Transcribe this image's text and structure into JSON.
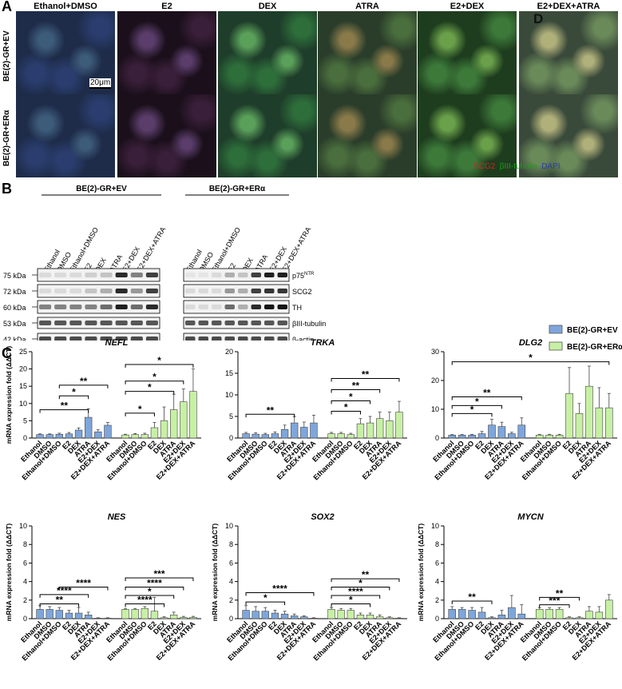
{
  "panels": {
    "a": "A",
    "b": "B",
    "c": "C"
  },
  "micro": {
    "columns": [
      "Ethanol+DMSO",
      "E2",
      "DEX",
      "ATRA",
      "E2+DEX",
      "E2+DEX+ATRA"
    ],
    "rows": [
      "BE(2)-GR+EV",
      "BE(2)-GR+ERα"
    ],
    "scale_bar": "20μm",
    "corner_label": "D",
    "stain_legend": [
      {
        "text": "SCG2",
        "color": "#d62020"
      },
      {
        "text": "βIII-tubulin",
        "color": "#1a9e1a"
      },
      {
        "text": "DAPI",
        "color": "#2b3ea8"
      }
    ]
  },
  "western": {
    "groups": [
      "BE(2)-GR+EV",
      "BE(2)-GR+ERα"
    ],
    "lanes": [
      "Ethanol",
      "DMSO",
      "Ethanol+DMSO",
      "E2",
      "DEX",
      "ATRA",
      "E2+DEX",
      "E2+DEX+ATRA"
    ],
    "kda": [
      "75 kDa",
      "72 kDa",
      "60 kDa",
      "53 kDa",
      "42 kDa"
    ],
    "proteins": [
      "p75",
      "SCG2",
      "TH",
      "βIII-tubulin",
      "β-actin"
    ],
    "p75_sup": "NTR"
  },
  "legend": {
    "ev": "BE(2)-GR+EV",
    "era": "BE(2)-GR+ERα",
    "ev_color": "#7ea6dc",
    "era_color": "#c7f0a4"
  },
  "chart_data": [
    {
      "type": "bar",
      "title": "NEFL",
      "ylabel": "mRNA expression fold (ΔΔCT)",
      "ylim": [
        0,
        25
      ],
      "yticks": [
        0,
        5,
        10,
        15,
        20,
        25
      ],
      "categories": [
        "Ethanol",
        "DMSO",
        "Ethanol+DMSO",
        "E2",
        "DEX",
        "ATRA",
        "E2+DEX",
        "E2+DEX+ATRA"
      ],
      "series": [
        {
          "name": "BE(2)-GR+EV",
          "values": [
            1,
            1,
            1.1,
            1.2,
            2.3,
            6,
            1.8,
            3.7
          ],
          "err": [
            0.2,
            0.2,
            0.3,
            0.4,
            0.6,
            2.5,
            0.6,
            0.8
          ]
        },
        {
          "name": "BE(2)-GR+ERα",
          "values": [
            0.9,
            1,
            1,
            3,
            5,
            8.2,
            10.5,
            13.5
          ],
          "err": [
            0.2,
            0.3,
            0.4,
            1.5,
            4,
            4.5,
            3.7,
            6.5
          ]
        }
      ],
      "sig": [
        {
          "label": "**",
          "s": 0,
          "from": 0,
          "to": 5,
          "y": 8.2
        },
        {
          "label": "*",
          "s": 0,
          "from": 2,
          "to": 5,
          "y": 12.2
        },
        {
          "label": "**",
          "s": 0,
          "from": 2,
          "to": 7,
          "y": 15.3
        },
        {
          "label": "*",
          "s": 1,
          "from": 0,
          "to": 3,
          "y": 7.2
        },
        {
          "label": "*",
          "s": 1,
          "from": 0,
          "to": 5,
          "y": 13.5
        },
        {
          "label": "*",
          "s": 1,
          "from": 0,
          "to": 6,
          "y": 16.5
        },
        {
          "label": "*",
          "s": 1,
          "from": 0,
          "to": 7,
          "y": 21.3
        }
      ]
    },
    {
      "type": "bar",
      "title": "TRKA",
      "ylabel": "",
      "ylim": [
        0,
        20
      ],
      "yticks": [
        0,
        5,
        10,
        15,
        20
      ],
      "categories": [
        "Ethanol",
        "DMSO",
        "Ethanol+DMSO",
        "E2",
        "DEX",
        "ATRA",
        "E2+DEX",
        "E2+DEX+ATRA"
      ],
      "series": [
        {
          "name": "BE(2)-GR+EV",
          "values": [
            1,
            0.9,
            0.8,
            1,
            2,
            3.5,
            2.5,
            3.5
          ],
          "err": [
            0.3,
            0.3,
            0.3,
            0.4,
            1,
            1.5,
            1.2,
            1.8
          ]
        },
        {
          "name": "BE(2)-GR+ERα",
          "values": [
            1,
            1,
            0.8,
            3.3,
            3.5,
            4.5,
            4,
            6
          ],
          "err": [
            0.3,
            0.3,
            0.3,
            1.2,
            1.5,
            1.5,
            2,
            2.5
          ]
        }
      ],
      "sig": [
        {
          "label": "**",
          "s": 0,
          "from": 0,
          "to": 5,
          "y": 5.5
        },
        {
          "label": "*",
          "s": 1,
          "from": 0,
          "to": 3,
          "y": 6.2
        },
        {
          "label": "*",
          "s": 1,
          "from": 0,
          "to": 4,
          "y": 8.6
        },
        {
          "label": "**",
          "s": 1,
          "from": 0,
          "to": 5,
          "y": 11.2
        },
        {
          "label": "**",
          "s": 1,
          "from": 0,
          "to": 7,
          "y": 13.8
        }
      ]
    },
    {
      "type": "bar",
      "title": "DLG2",
      "ylabel": "",
      "ylim": [
        0,
        30
      ],
      "yticks": [
        0,
        10,
        20,
        30
      ],
      "categories": [
        "Ethanol",
        "DMSO",
        "Ethanol+DMSO",
        "E2",
        "DEX",
        "ATRA",
        "E2+DEX",
        "E2+DEX+ATRA"
      ],
      "series": [
        {
          "name": "BE(2)-GR+EV",
          "values": [
            1,
            1,
            1,
            1.5,
            4.5,
            4,
            1.5,
            4.5
          ],
          "err": [
            0.2,
            0.2,
            0.3,
            0.8,
            2,
            1.5,
            0.5,
            2.5
          ]
        },
        {
          "name": "BE(2)-GR+ERα",
          "values": [
            1,
            1,
            1,
            15.5,
            8.5,
            18,
            10.5,
            10.5
          ],
          "err": [
            0.3,
            0.3,
            0.3,
            9,
            3.5,
            7,
            7,
            5
          ]
        }
      ],
      "sig": [
        {
          "label": "*",
          "s": 0,
          "from": 0,
          "to": 4,
          "y": 8.5
        },
        {
          "label": "*",
          "s": 0,
          "from": 0,
          "to": 5,
          "y": 11.3
        },
        {
          "label": "**",
          "s": 0,
          "from": 0,
          "to": 7,
          "y": 14.3
        },
        {
          "label": "*",
          "s": 2,
          "from": 0,
          "to": 7,
          "y": 26.5
        }
      ]
    },
    {
      "type": "bar",
      "title": "NES",
      "ylabel": "mRNA expression fold (ΔΔCT)",
      "ylim": [
        0,
        10
      ],
      "yticks": [
        0,
        2,
        4,
        6,
        8,
        10
      ],
      "categories": [
        "Ethanol",
        "DMSO",
        "Ethanol+DMSO",
        "E2",
        "DEX",
        "ATRA",
        "E2+DEX",
        "E2+DEX+ATRA"
      ],
      "series": [
        {
          "name": "BE(2)-GR+EV",
          "values": [
            1,
            1,
            0.9,
            0.6,
            0.6,
            0.4,
            0.05,
            0.05
          ],
          "err": [
            0.4,
            0.3,
            0.3,
            0.3,
            0.6,
            0.3,
            0.05,
            0.05
          ]
        },
        {
          "name": "BE(2)-GR+ERα",
          "values": [
            1,
            1,
            1.1,
            0.8,
            0.1,
            0.4,
            0.15,
            0.15
          ],
          "err": [
            0.1,
            0.1,
            0.2,
            1.5,
            0.1,
            0.3,
            0.1,
            0.1
          ]
        }
      ],
      "sig": [
        {
          "label": "**",
          "s": 0,
          "from": 0,
          "to": 4,
          "y": 1.6
        },
        {
          "label": "****",
          "s": 0,
          "from": 0,
          "to": 5,
          "y": 2.6
        },
        {
          "label": "****",
          "s": 0,
          "from": 2,
          "to": 7,
          "y": 3.4
        },
        {
          "label": "****",
          "s": 1,
          "from": 0,
          "to": 4,
          "y": 1.6
        },
        {
          "label": "*",
          "s": 1,
          "from": 0,
          "to": 5,
          "y": 2.5
        },
        {
          "label": "****",
          "s": 1,
          "from": 0,
          "to": 6,
          "y": 3.4
        },
        {
          "label": "***",
          "s": 1,
          "from": 0,
          "to": 7,
          "y": 4.4
        }
      ]
    },
    {
      "type": "bar",
      "title": "SOX2",
      "ylabel": "mRNA expression fold (ΔΔCT)",
      "ylim": [
        0,
        10
      ],
      "yticks": [
        0,
        2,
        4,
        6,
        8,
        10
      ],
      "categories": [
        "Ethanol",
        "DMSO",
        "Ethanol+DMSO",
        "E2",
        "DEX",
        "ATRA",
        "E2+DEX",
        "E2+DEX+ATRA"
      ],
      "series": [
        {
          "name": "BE(2)-GR+EV",
          "values": [
            0.9,
            0.8,
            0.8,
            0.6,
            0.5,
            0.3,
            0.2,
            0.05
          ],
          "err": [
            0.5,
            0.5,
            0.4,
            0.3,
            0.3,
            0.2,
            0.1,
            0.05
          ]
        },
        {
          "name": "BE(2)-GR+ERα",
          "values": [
            1,
            0.9,
            0.9,
            0.4,
            0.4,
            0.2,
            0.1,
            0.05
          ],
          "err": [
            0.2,
            0.2,
            0.2,
            0.2,
            0.2,
            0.2,
            0.1,
            0.05
          ]
        }
      ],
      "sig": [
        {
          "label": "*",
          "s": 0,
          "from": 0,
          "to": 4,
          "y": 1.8
        },
        {
          "label": "****",
          "s": 0,
          "from": 0,
          "to": 7,
          "y": 2.8
        },
        {
          "label": "*",
          "s": 1,
          "from": 0,
          "to": 4,
          "y": 1.6
        },
        {
          "label": "****",
          "s": 1,
          "from": 0,
          "to": 5,
          "y": 2.5
        },
        {
          "label": "*",
          "s": 1,
          "from": 0,
          "to": 6,
          "y": 3.4
        },
        {
          "label": "**",
          "s": 1,
          "from": 0,
          "to": 7,
          "y": 4.3
        }
      ]
    },
    {
      "type": "bar",
      "title": "MYCN",
      "ylabel": "mRNA expression fold (ΔΔCT)",
      "ylim": [
        0,
        10
      ],
      "yticks": [
        0,
        2,
        4,
        6,
        8,
        10
      ],
      "categories": [
        "Ethanol",
        "DMSO",
        "Ethanol+DMSO",
        "E2",
        "DEX",
        "ATRA",
        "E2+DEX",
        "E2+DEX+ATRA"
      ],
      "series": [
        {
          "name": "BE(2)-GR+EV",
          "values": [
            1,
            1,
            0.9,
            0.7,
            0.1,
            0.4,
            1.2,
            0.5
          ],
          "err": [
            0.3,
            0.2,
            0.3,
            0.5,
            0.1,
            0.5,
            1.3,
            1
          ]
        },
        {
          "name": "BE(2)-GR+ERα",
          "values": [
            1,
            1,
            1,
            0.1,
            0.1,
            0.8,
            0.7,
            2
          ],
          "err": [
            0.2,
            0.2,
            0.2,
            0.1,
            0.1,
            0.5,
            0.6,
            0.6
          ]
        }
      ],
      "sig": [
        {
          "label": "**",
          "s": 0,
          "from": 0,
          "to": 4,
          "y": 1.9
        },
        {
          "label": "***",
          "s": 1,
          "from": 0,
          "to": 3,
          "y": 1.5
        },
        {
          "label": "**",
          "s": 1,
          "from": 0,
          "to": 4,
          "y": 2.3
        }
      ]
    }
  ]
}
